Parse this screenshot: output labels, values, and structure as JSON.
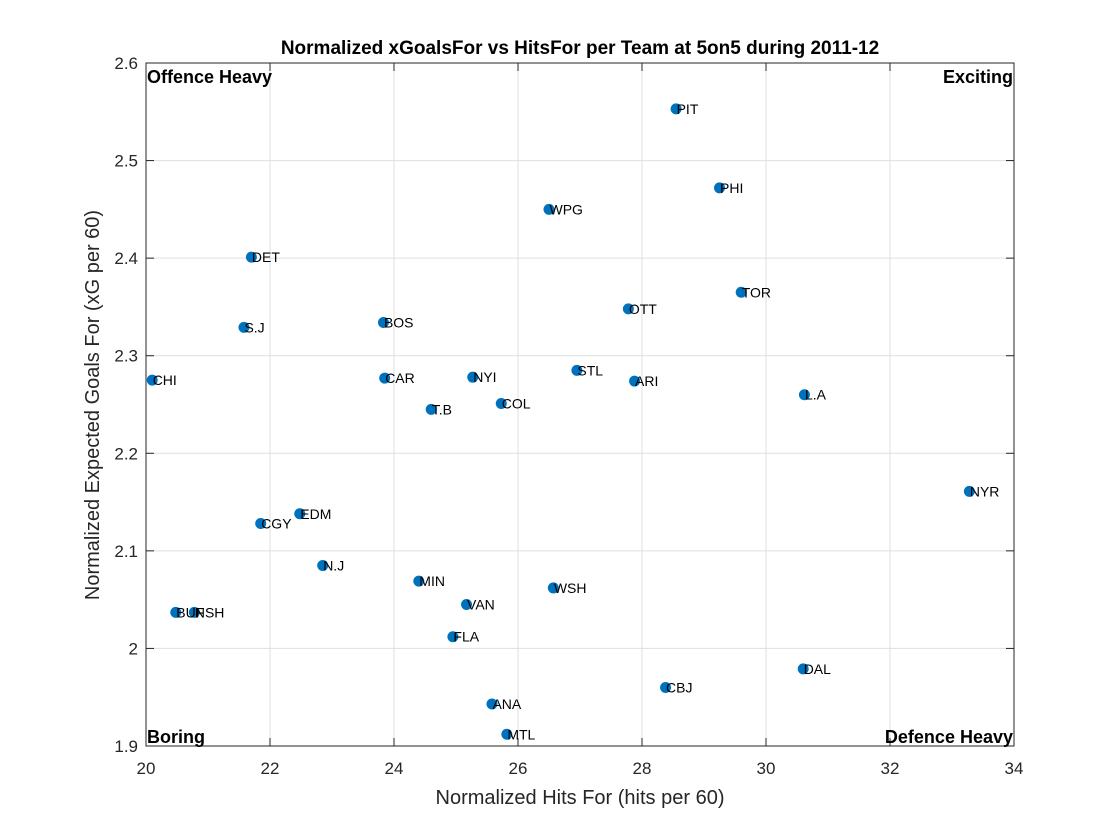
{
  "chart_data": {
    "type": "scatter",
    "title": "Normalized xGoalsFor vs HitsFor per Team at 5on5 during 2011-12",
    "xlabel": "Normalized Hits For (hits per 60)",
    "ylabel": "Normalized Expected Goals For (xG per 60)",
    "xlim": [
      20,
      34
    ],
    "ylim": [
      1.9,
      2.6
    ],
    "xticks": [
      20,
      22,
      24,
      26,
      28,
      30,
      32,
      34
    ],
    "yticks": [
      1.9,
      2,
      2.1,
      2.2,
      2.3,
      2.4,
      2.5,
      2.6
    ],
    "xtick_labels": [
      "20",
      "22",
      "24",
      "26",
      "28",
      "30",
      "32",
      "34"
    ],
    "ytick_labels": [
      "1.9",
      "2",
      "2.1",
      "2.2",
      "2.3",
      "2.4",
      "2.5",
      "2.6"
    ],
    "grid": true,
    "marker_color": "#0072BD",
    "quadrant_labels": {
      "top_left": "Offence Heavy",
      "top_right": "Exciting",
      "bottom_left": "Boring",
      "bottom_right": "Defence Heavy"
    },
    "points": [
      {
        "label": "PIT",
        "x": 28.55,
        "y": 2.553
      },
      {
        "label": "PHI",
        "x": 29.25,
        "y": 2.472
      },
      {
        "label": "WPG",
        "x": 26.5,
        "y": 2.45
      },
      {
        "label": "DET",
        "x": 21.7,
        "y": 2.401
      },
      {
        "label": "TOR",
        "x": 29.6,
        "y": 2.365
      },
      {
        "label": "OTT",
        "x": 27.78,
        "y": 2.348
      },
      {
        "label": "BOS",
        "x": 23.83,
        "y": 2.334
      },
      {
        "label": "S.J",
        "x": 21.58,
        "y": 2.329
      },
      {
        "label": "STL",
        "x": 26.95,
        "y": 2.285
      },
      {
        "label": "NYI",
        "x": 25.27,
        "y": 2.278
      },
      {
        "label": "CAR",
        "x": 23.85,
        "y": 2.277
      },
      {
        "label": "CHI",
        "x": 20.1,
        "y": 2.275
      },
      {
        "label": "ARI",
        "x": 27.88,
        "y": 2.274
      },
      {
        "label": "L.A",
        "x": 30.62,
        "y": 2.26
      },
      {
        "label": "COL",
        "x": 25.73,
        "y": 2.251
      },
      {
        "label": "T.B",
        "x": 24.6,
        "y": 2.245
      },
      {
        "label": "NYR",
        "x": 33.28,
        "y": 2.161
      },
      {
        "label": "EDM",
        "x": 22.48,
        "y": 2.138
      },
      {
        "label": "CGY",
        "x": 21.85,
        "y": 2.128
      },
      {
        "label": "N.J",
        "x": 22.85,
        "y": 2.085
      },
      {
        "label": "MIN",
        "x": 24.4,
        "y": 2.069
      },
      {
        "label": "WSH",
        "x": 26.57,
        "y": 2.062
      },
      {
        "label": "VAN",
        "x": 25.17,
        "y": 2.045
      },
      {
        "label": "BUF",
        "x": 20.48,
        "y": 2.037
      },
      {
        "label": "NSH",
        "x": 20.78,
        "y": 2.037
      },
      {
        "label": "FLA",
        "x": 24.95,
        "y": 2.012
      },
      {
        "label": "DAL",
        "x": 30.6,
        "y": 1.979
      },
      {
        "label": "CBJ",
        "x": 28.38,
        "y": 1.96
      },
      {
        "label": "ANA",
        "x": 25.58,
        "y": 1.943
      },
      {
        "label": "MTL",
        "x": 25.82,
        "y": 1.912
      }
    ]
  }
}
